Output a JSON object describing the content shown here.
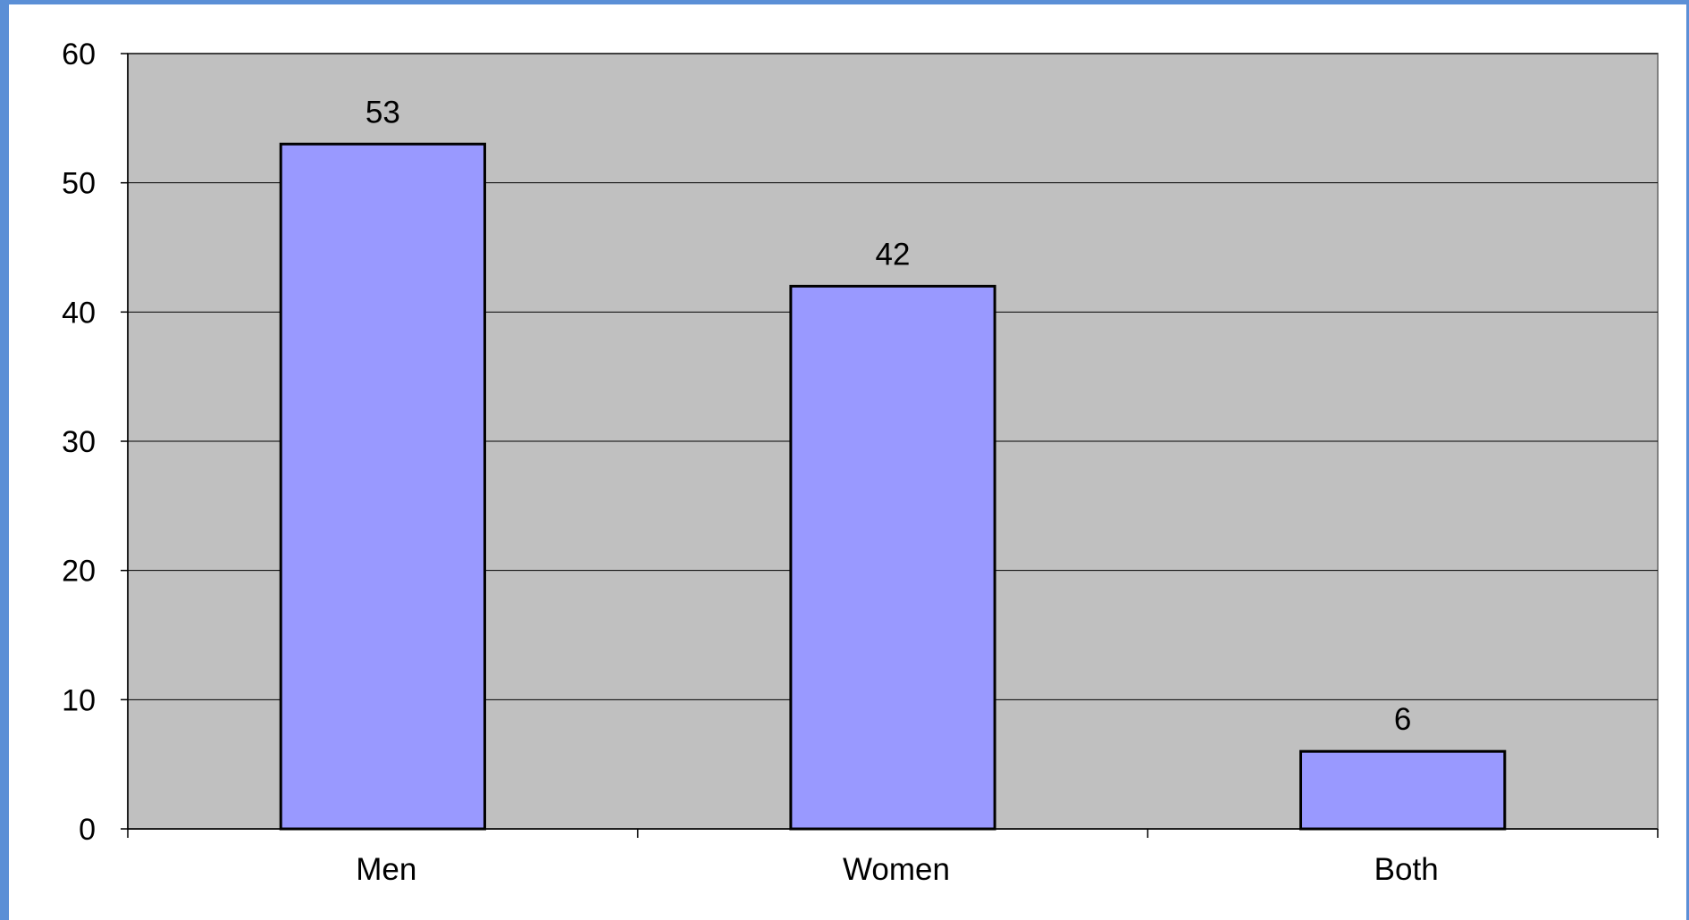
{
  "chart_data": {
    "type": "bar",
    "categories": [
      "Men",
      "Women",
      "Both"
    ],
    "values": [
      53,
      42,
      6
    ],
    "title": "",
    "xlabel": "",
    "ylabel": "",
    "ylim": [
      0,
      60
    ],
    "yticks": [
      0,
      10,
      20,
      30,
      40,
      50,
      60
    ],
    "grid": true,
    "legend": "none",
    "colors": {
      "bar_fill": "#9999ff",
      "bar_stroke": "#000000",
      "plot_background": "#c0c0c0",
      "gridline": "#000000",
      "frame_border": "#5b8fd6"
    }
  }
}
